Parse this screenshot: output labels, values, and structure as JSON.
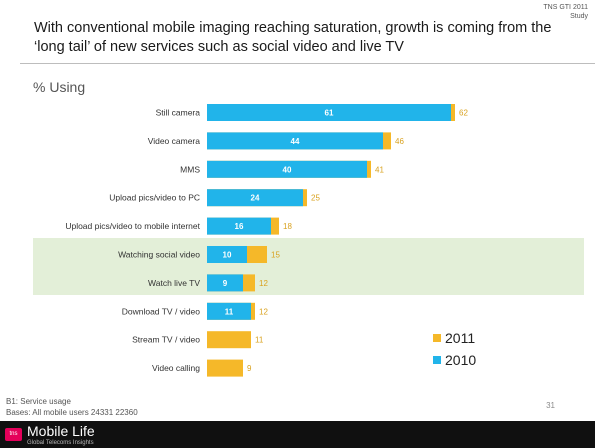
{
  "header": {
    "source_line1": "TNS GTI 2011",
    "source_line2": "Study",
    "title": "With conventional mobile imaging reaching saturation, growth is coming from the ‘long tail’ of new services such as social video and live TV"
  },
  "chart_data": {
    "type": "bar",
    "orientation": "horizontal",
    "ylabel": "% Using",
    "categories": [
      "Still camera",
      "Video camera",
      "MMS",
      "Upload pics/video to PC",
      "Upload pics/video to mobile internet",
      "Watching social video",
      "Watch live TV",
      "Download TV / video",
      "Stream TV / video",
      "Video calling"
    ],
    "series": [
      {
        "name": "2011",
        "values": [
          62,
          46,
          41,
          25,
          18,
          15,
          12,
          12,
          11,
          9
        ]
      },
      {
        "name": "2010",
        "values": [
          61,
          44,
          40,
          24,
          16,
          10,
          9,
          11,
          null,
          null
        ]
      }
    ],
    "highlighted_categories": [
      "Watching social video",
      "Watch live TV"
    ],
    "legend_position": "bottom-right",
    "grid": false,
    "colors": {
      "2011": "#f5b829",
      "2010": "#21b4ea"
    }
  },
  "footnotes": {
    "line1": "B1: Service usage",
    "line2": "Bases: All mobile users 24331 22360"
  },
  "page_number": "31",
  "footer": {
    "badge": "tns",
    "brand": "Mobile Life",
    "tagline": "Global Telecoms Insights"
  }
}
